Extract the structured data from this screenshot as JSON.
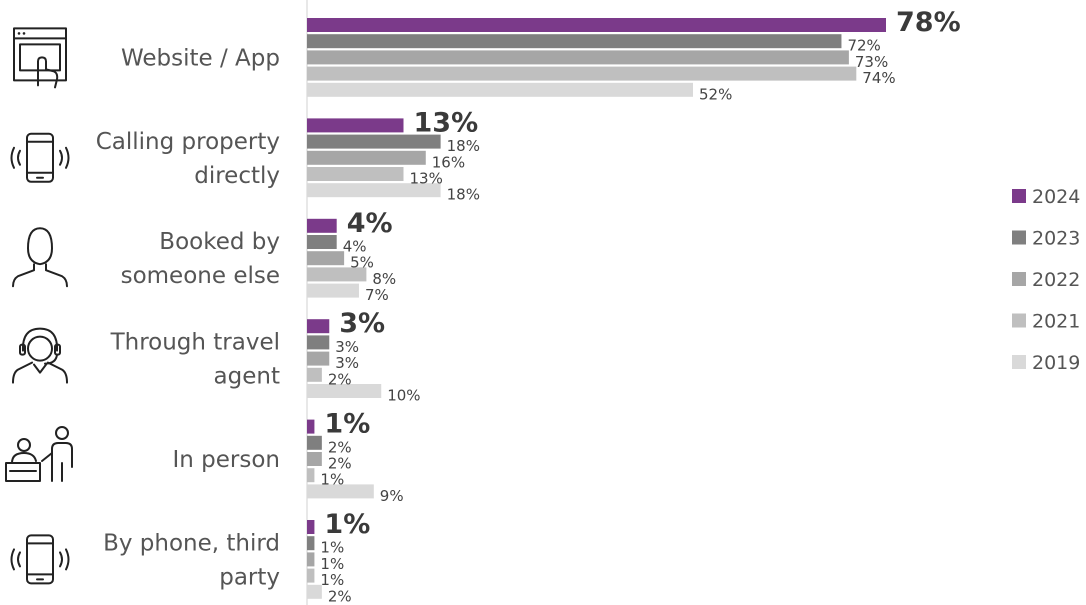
{
  "chart_data": {
    "type": "bar",
    "orientation": "horizontal",
    "categories": [
      "Website / App",
      "Calling property directly",
      "Booked by someone else",
      "Through travel agent",
      "In person",
      "By phone, third party"
    ],
    "category_lines": [
      [
        "Website / App"
      ],
      [
        "Calling property",
        "directly"
      ],
      [
        "Booked by",
        "someone else"
      ],
      [
        "Through travel",
        "agent"
      ],
      [
        "In person"
      ],
      [
        "By phone, third",
        "party"
      ]
    ],
    "category_icons": [
      "website-click-icon",
      "phone-ringing-icon",
      "person-icon",
      "headset-agent-icon",
      "reception-desk-icon",
      "phone-ringing-icon"
    ],
    "series": [
      {
        "name": "2024",
        "color": "#7B3A8A",
        "values": [
          78,
          13,
          4,
          3,
          1,
          1
        ]
      },
      {
        "name": "2023",
        "color": "#7F7F7F",
        "values": [
          72,
          18,
          4,
          3,
          2,
          1
        ]
      },
      {
        "name": "2022",
        "color": "#A6A6A6",
        "values": [
          73,
          16,
          5,
          3,
          2,
          1
        ]
      },
      {
        "name": "2021",
        "color": "#BFBFBF",
        "values": [
          74,
          13,
          8,
          2,
          1,
          1
        ]
      },
      {
        "name": "2019",
        "color": "#D9D9D9",
        "values": [
          52,
          18,
          7,
          10,
          9,
          2
        ]
      }
    ],
    "value_suffix": "%",
    "emphasized_series": "2024",
    "xlim": [
      0,
      100
    ],
    "legend_position": "right",
    "grid": false
  }
}
